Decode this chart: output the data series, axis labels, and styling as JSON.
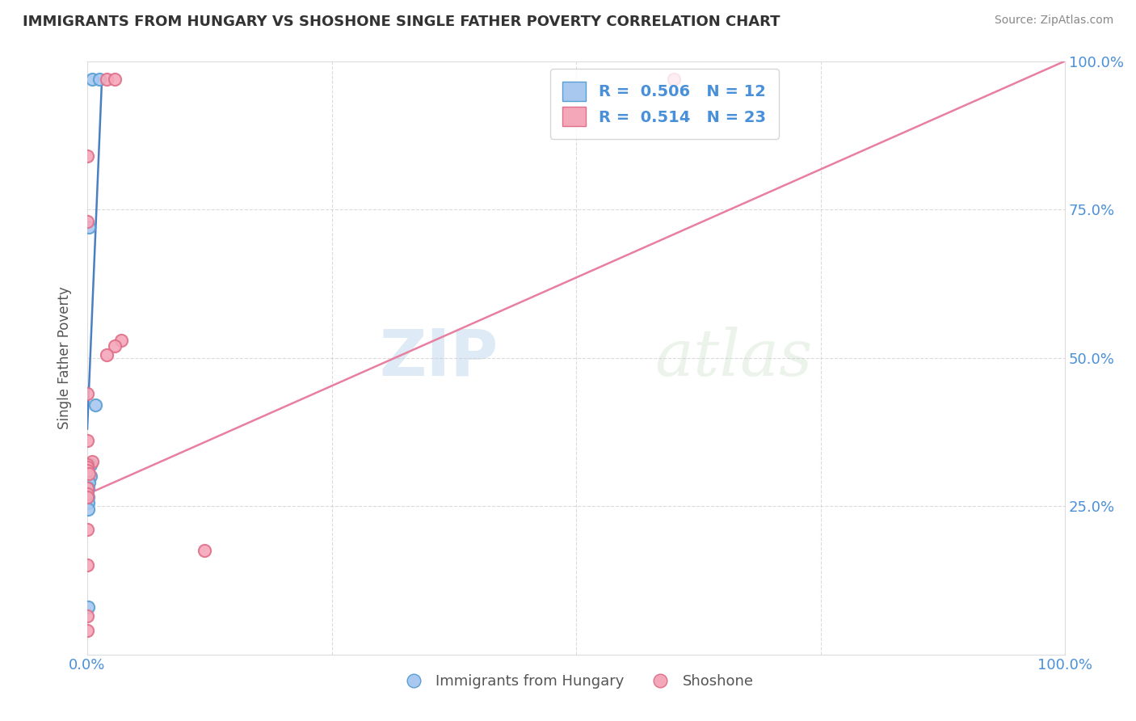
{
  "title": "IMMIGRANTS FROM HUNGARY VS SHOSHONE SINGLE FATHER POVERTY CORRELATION CHART",
  "source": "Source: ZipAtlas.com",
  "xlabel": "",
  "ylabel": "Single Father Poverty",
  "watermark_zip": "ZIP",
  "watermark_atlas": "atlas",
  "xlim": [
    0,
    1.0
  ],
  "ylim": [
    0,
    1.0
  ],
  "legend_r1": "R =  0.506",
  "legend_n1": "N = 12",
  "legend_r2": "R =  0.514",
  "legend_n2": "N = 23",
  "blue_color": "#a8c8f0",
  "pink_color": "#f4a7b9",
  "blue_edge_color": "#5a9fd4",
  "pink_edge_color": "#e0708a",
  "blue_line_color": "#4a7fc1",
  "pink_line_color": "#e87fa0",
  "blue_scatter": [
    [
      0.005,
      0.97
    ],
    [
      0.012,
      0.97
    ],
    [
      0.002,
      0.72
    ],
    [
      0.008,
      0.42
    ],
    [
      0.003,
      0.32
    ],
    [
      0.003,
      0.3
    ],
    [
      0.002,
      0.29
    ],
    [
      0.001,
      0.28
    ],
    [
      0.001,
      0.265
    ],
    [
      0.001,
      0.255
    ],
    [
      0.001,
      0.245
    ],
    [
      0.001,
      0.08
    ]
  ],
  "pink_scatter": [
    [
      0.02,
      0.97
    ],
    [
      0.028,
      0.97
    ],
    [
      0.0,
      0.84
    ],
    [
      0.0,
      0.73
    ],
    [
      0.035,
      0.53
    ],
    [
      0.028,
      0.52
    ],
    [
      0.02,
      0.505
    ],
    [
      0.0,
      0.44
    ],
    [
      0.0,
      0.36
    ],
    [
      0.005,
      0.325
    ],
    [
      0.0,
      0.32
    ],
    [
      0.0,
      0.315
    ],
    [
      0.0,
      0.31
    ],
    [
      0.002,
      0.305
    ],
    [
      0.0,
      0.28
    ],
    [
      0.0,
      0.27
    ],
    [
      0.0,
      0.265
    ],
    [
      0.0,
      0.21
    ],
    [
      0.12,
      0.175
    ],
    [
      0.0,
      0.15
    ],
    [
      0.0,
      0.065
    ],
    [
      0.0,
      0.04
    ],
    [
      0.6,
      0.97
    ]
  ],
  "blue_trend_x": [
    0.0,
    0.015
  ],
  "blue_trend_y": [
    0.38,
    0.97
  ],
  "pink_trend_x": [
    0.0,
    1.0
  ],
  "pink_trend_y": [
    0.27,
    1.0
  ]
}
